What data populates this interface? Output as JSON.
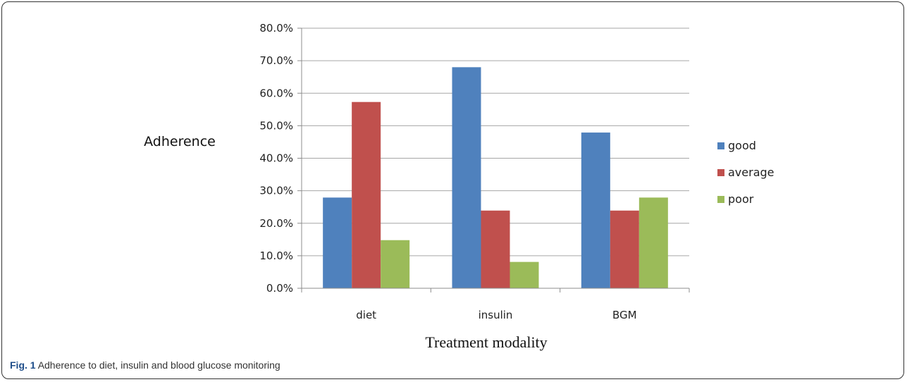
{
  "caption": {
    "label": "Fig. 1",
    "text": "Adherence to diet, insulin and blood glucose monitoring"
  },
  "chart_data": {
    "type": "bar",
    "categories": [
      "diet",
      "insulin",
      "BGM"
    ],
    "series": [
      {
        "name": "good",
        "values": [
          27.9,
          68.0,
          47.9
        ],
        "color": "#4F81BD"
      },
      {
        "name": "average",
        "values": [
          57.3,
          23.9,
          23.9
        ],
        "color": "#C0504D"
      },
      {
        "name": "poor",
        "values": [
          14.8,
          8.1,
          27.9
        ],
        "color": "#9BBB59"
      }
    ],
    "ylabel": "Adherence",
    "xlabel": "Treatment modality",
    "ylim": [
      0,
      80
    ],
    "yticks": [
      "0.0%",
      "10.0%",
      "20.0%",
      "30.0%",
      "40.0%",
      "50.0%",
      "60.0%",
      "70.0%",
      "80.0%"
    ],
    "grid": true,
    "legend": "right"
  }
}
